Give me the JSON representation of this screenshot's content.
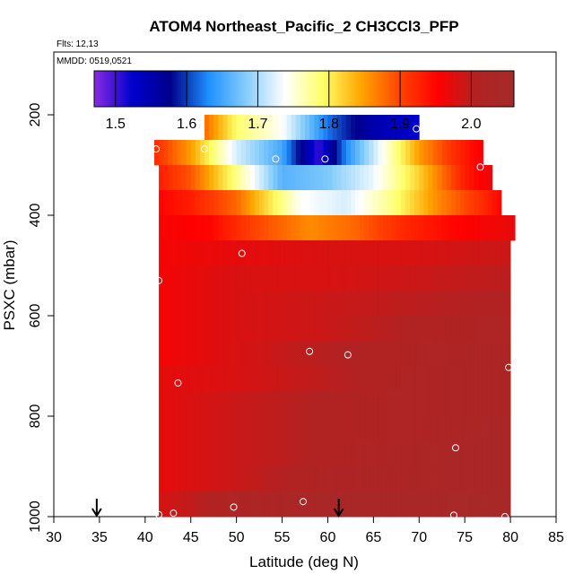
{
  "chart_data": {
    "type": "heatmap",
    "title": "ATOM4 Northeast_Pacific_2 CH3CCl3_PFP",
    "flights_label": "Flts: 12,13",
    "date_label": "MMDD: 0519,0521",
    "xlabel": "Latitude (deg N)",
    "ylabel": "PSXC (mbar)",
    "xlim": [
      30,
      85
    ],
    "ylim": [
      1000,
      75
    ],
    "x_ticks": [
      30,
      35,
      40,
      45,
      50,
      55,
      60,
      65,
      70,
      75,
      80,
      85
    ],
    "y_ticks": [
      200,
      400,
      600,
      800,
      1000
    ],
    "colorbar": {
      "range": [
        1.47,
        2.06
      ],
      "ticks": [
        1.5,
        1.6,
        1.7,
        1.8,
        1.9,
        2.0
      ],
      "tick_labels": [
        "1.5",
        "1.6",
        "1.7",
        "1.8",
        "1.9",
        "2.0"
      ],
      "colors": [
        "#8a2be2",
        "#0000cd",
        "#00008b",
        "#1e90ff",
        "#87cefa",
        "#ffffff",
        "#ffff66",
        "#ffa500",
        "#ff4500",
        "#ff0000",
        "#b22222",
        "#a52a2a"
      ]
    },
    "rows": [
      {
        "p_top": 200,
        "p_bottom": 250,
        "lat_min": 46.5,
        "lat_max": 70.0,
        "stops": [
          [
            46.5,
            1.88
          ],
          [
            50,
            1.79
          ],
          [
            55,
            1.74
          ],
          [
            60,
            1.62
          ],
          [
            65,
            1.55
          ],
          [
            70,
            1.52
          ]
        ]
      },
      {
        "p_top": 250,
        "p_bottom": 300,
        "lat_min": 41.0,
        "lat_max": 77.0,
        "stops": [
          [
            41,
            1.92
          ],
          [
            45,
            1.85
          ],
          [
            50,
            1.72
          ],
          [
            55,
            1.65
          ],
          [
            59,
            1.5
          ],
          [
            62,
            1.63
          ],
          [
            66,
            1.74
          ],
          [
            70,
            1.85
          ],
          [
            74,
            1.92
          ],
          [
            77,
            1.96
          ]
        ]
      },
      {
        "p_top": 300,
        "p_bottom": 350,
        "lat_min": 41.5,
        "lat_max": 78.0,
        "stops": [
          [
            41.5,
            1.93
          ],
          [
            45,
            1.89
          ],
          [
            50,
            1.78
          ],
          [
            55,
            1.66
          ],
          [
            60,
            1.68
          ],
          [
            65,
            1.73
          ],
          [
            70,
            1.82
          ],
          [
            75,
            1.93
          ],
          [
            78,
            1.97
          ]
        ]
      },
      {
        "p_top": 350,
        "p_bottom": 400,
        "lat_min": 41.5,
        "lat_max": 79.0,
        "stops": [
          [
            41.5,
            1.95
          ],
          [
            45,
            1.93
          ],
          [
            50,
            1.88
          ],
          [
            53,
            1.82
          ],
          [
            57,
            1.74
          ],
          [
            62,
            1.72
          ],
          [
            67,
            1.78
          ],
          [
            72,
            1.86
          ],
          [
            77,
            1.92
          ],
          [
            79,
            1.95
          ]
        ]
      },
      {
        "p_top": 400,
        "p_bottom": 450,
        "lat_min": 41.5,
        "lat_max": 80.5,
        "stops": [
          [
            41.5,
            1.96
          ],
          [
            47,
            1.95
          ],
          [
            52,
            1.9
          ],
          [
            58,
            1.86
          ],
          [
            63,
            1.88
          ],
          [
            68,
            1.92
          ],
          [
            74,
            1.95
          ],
          [
            80.5,
            1.97
          ]
        ]
      },
      {
        "p_top": 450,
        "p_bottom": 500,
        "lat_min": 41.5,
        "lat_max": 80.0,
        "stops": [
          [
            41.5,
            1.96
          ],
          [
            50,
            1.97
          ],
          [
            60,
            1.98
          ],
          [
            70,
            1.98
          ],
          [
            80,
            1.99
          ]
        ]
      },
      {
        "p_top": 500,
        "p_bottom": 550,
        "lat_min": 41.5,
        "lat_max": 80.0,
        "stops": [
          [
            41.5,
            1.96
          ],
          [
            50,
            1.98
          ],
          [
            60,
            1.98
          ],
          [
            70,
            1.99
          ],
          [
            80,
            2.0
          ]
        ]
      },
      {
        "p_top": 550,
        "p_bottom": 600,
        "lat_min": 41.5,
        "lat_max": 80.0,
        "stops": [
          [
            41.5,
            1.96
          ],
          [
            50,
            1.98
          ],
          [
            60,
            1.99
          ],
          [
            70,
            2.0
          ],
          [
            80,
            2.01
          ]
        ]
      },
      {
        "p_top": 600,
        "p_bottom": 650,
        "lat_min": 41.5,
        "lat_max": 80.0,
        "stops": [
          [
            41.5,
            1.96
          ],
          [
            50,
            1.98
          ],
          [
            60,
            1.99
          ],
          [
            70,
            2.01
          ],
          [
            80,
            2.02
          ]
        ]
      },
      {
        "p_top": 650,
        "p_bottom": 700,
        "lat_min": 41.5,
        "lat_max": 80.0,
        "stops": [
          [
            41.5,
            1.96
          ],
          [
            50,
            1.98
          ],
          [
            58,
            2.0
          ],
          [
            65,
            2.01
          ],
          [
            80,
            2.03
          ]
        ]
      },
      {
        "p_top": 700,
        "p_bottom": 750,
        "lat_min": 41.5,
        "lat_max": 80.0,
        "stops": [
          [
            41.5,
            1.97
          ],
          [
            50,
            1.98
          ],
          [
            60,
            2.0
          ],
          [
            70,
            2.02
          ],
          [
            80,
            2.03
          ]
        ]
      },
      {
        "p_top": 750,
        "p_bottom": 800,
        "lat_min": 41.5,
        "lat_max": 80.0,
        "stops": [
          [
            41.5,
            1.97
          ],
          [
            50,
            1.99
          ],
          [
            60,
            2.01
          ],
          [
            70,
            2.02
          ],
          [
            80,
            2.03
          ]
        ]
      },
      {
        "p_top": 800,
        "p_bottom": 850,
        "lat_min": 41.5,
        "lat_max": 80.0,
        "stops": [
          [
            41.5,
            1.97
          ],
          [
            50,
            1.99
          ],
          [
            60,
            2.01
          ],
          [
            70,
            2.02
          ],
          [
            80,
            2.04
          ]
        ]
      },
      {
        "p_top": 850,
        "p_bottom": 900,
        "lat_min": 41.5,
        "lat_max": 80.0,
        "stops": [
          [
            41.5,
            1.97
          ],
          [
            50,
            1.99
          ],
          [
            60,
            2.01
          ],
          [
            70,
            2.03
          ],
          [
            80,
            2.04
          ]
        ]
      },
      {
        "p_top": 900,
        "p_bottom": 950,
        "lat_min": 41.5,
        "lat_max": 80.0,
        "stops": [
          [
            41.5,
            1.97
          ],
          [
            50,
            1.99
          ],
          [
            60,
            2.02
          ],
          [
            70,
            2.03
          ],
          [
            80,
            2.04
          ]
        ]
      },
      {
        "p_top": 950,
        "p_bottom": 1000,
        "lat_min": 41.5,
        "lat_max": 80.0,
        "stops": [
          [
            41.5,
            1.98
          ],
          [
            50,
            2.02
          ],
          [
            60,
            2.04
          ],
          [
            70,
            2.04
          ],
          [
            80,
            2.05
          ]
        ]
      }
    ],
    "samples": [
      {
        "lat": 69.7,
        "p": 228
      },
      {
        "lat": 41.2,
        "p": 268
      },
      {
        "lat": 46.5,
        "p": 268
      },
      {
        "lat": 54.3,
        "p": 288
      },
      {
        "lat": 59.7,
        "p": 288
      },
      {
        "lat": 76.7,
        "p": 304
      },
      {
        "lat": 80.5,
        "p": 460
      },
      {
        "lat": 50.6,
        "p": 476
      },
      {
        "lat": 41.5,
        "p": 530
      },
      {
        "lat": 58.0,
        "p": 671
      },
      {
        "lat": 62.2,
        "p": 678
      },
      {
        "lat": 79.8,
        "p": 703
      },
      {
        "lat": 43.6,
        "p": 734
      },
      {
        "lat": 74.0,
        "p": 863
      },
      {
        "lat": 57.3,
        "p": 970
      },
      {
        "lat": 49.7,
        "p": 981
      },
      {
        "lat": 41.5,
        "p": 996
      },
      {
        "lat": 43.1,
        "p": 993
      },
      {
        "lat": 73.8,
        "p": 997
      },
      {
        "lat": 79.4,
        "p": 1000
      }
    ],
    "arrows": [
      {
        "lat": 34.7,
        "p": 1000
      },
      {
        "lat": 61.2,
        "p": 1000
      }
    ]
  }
}
